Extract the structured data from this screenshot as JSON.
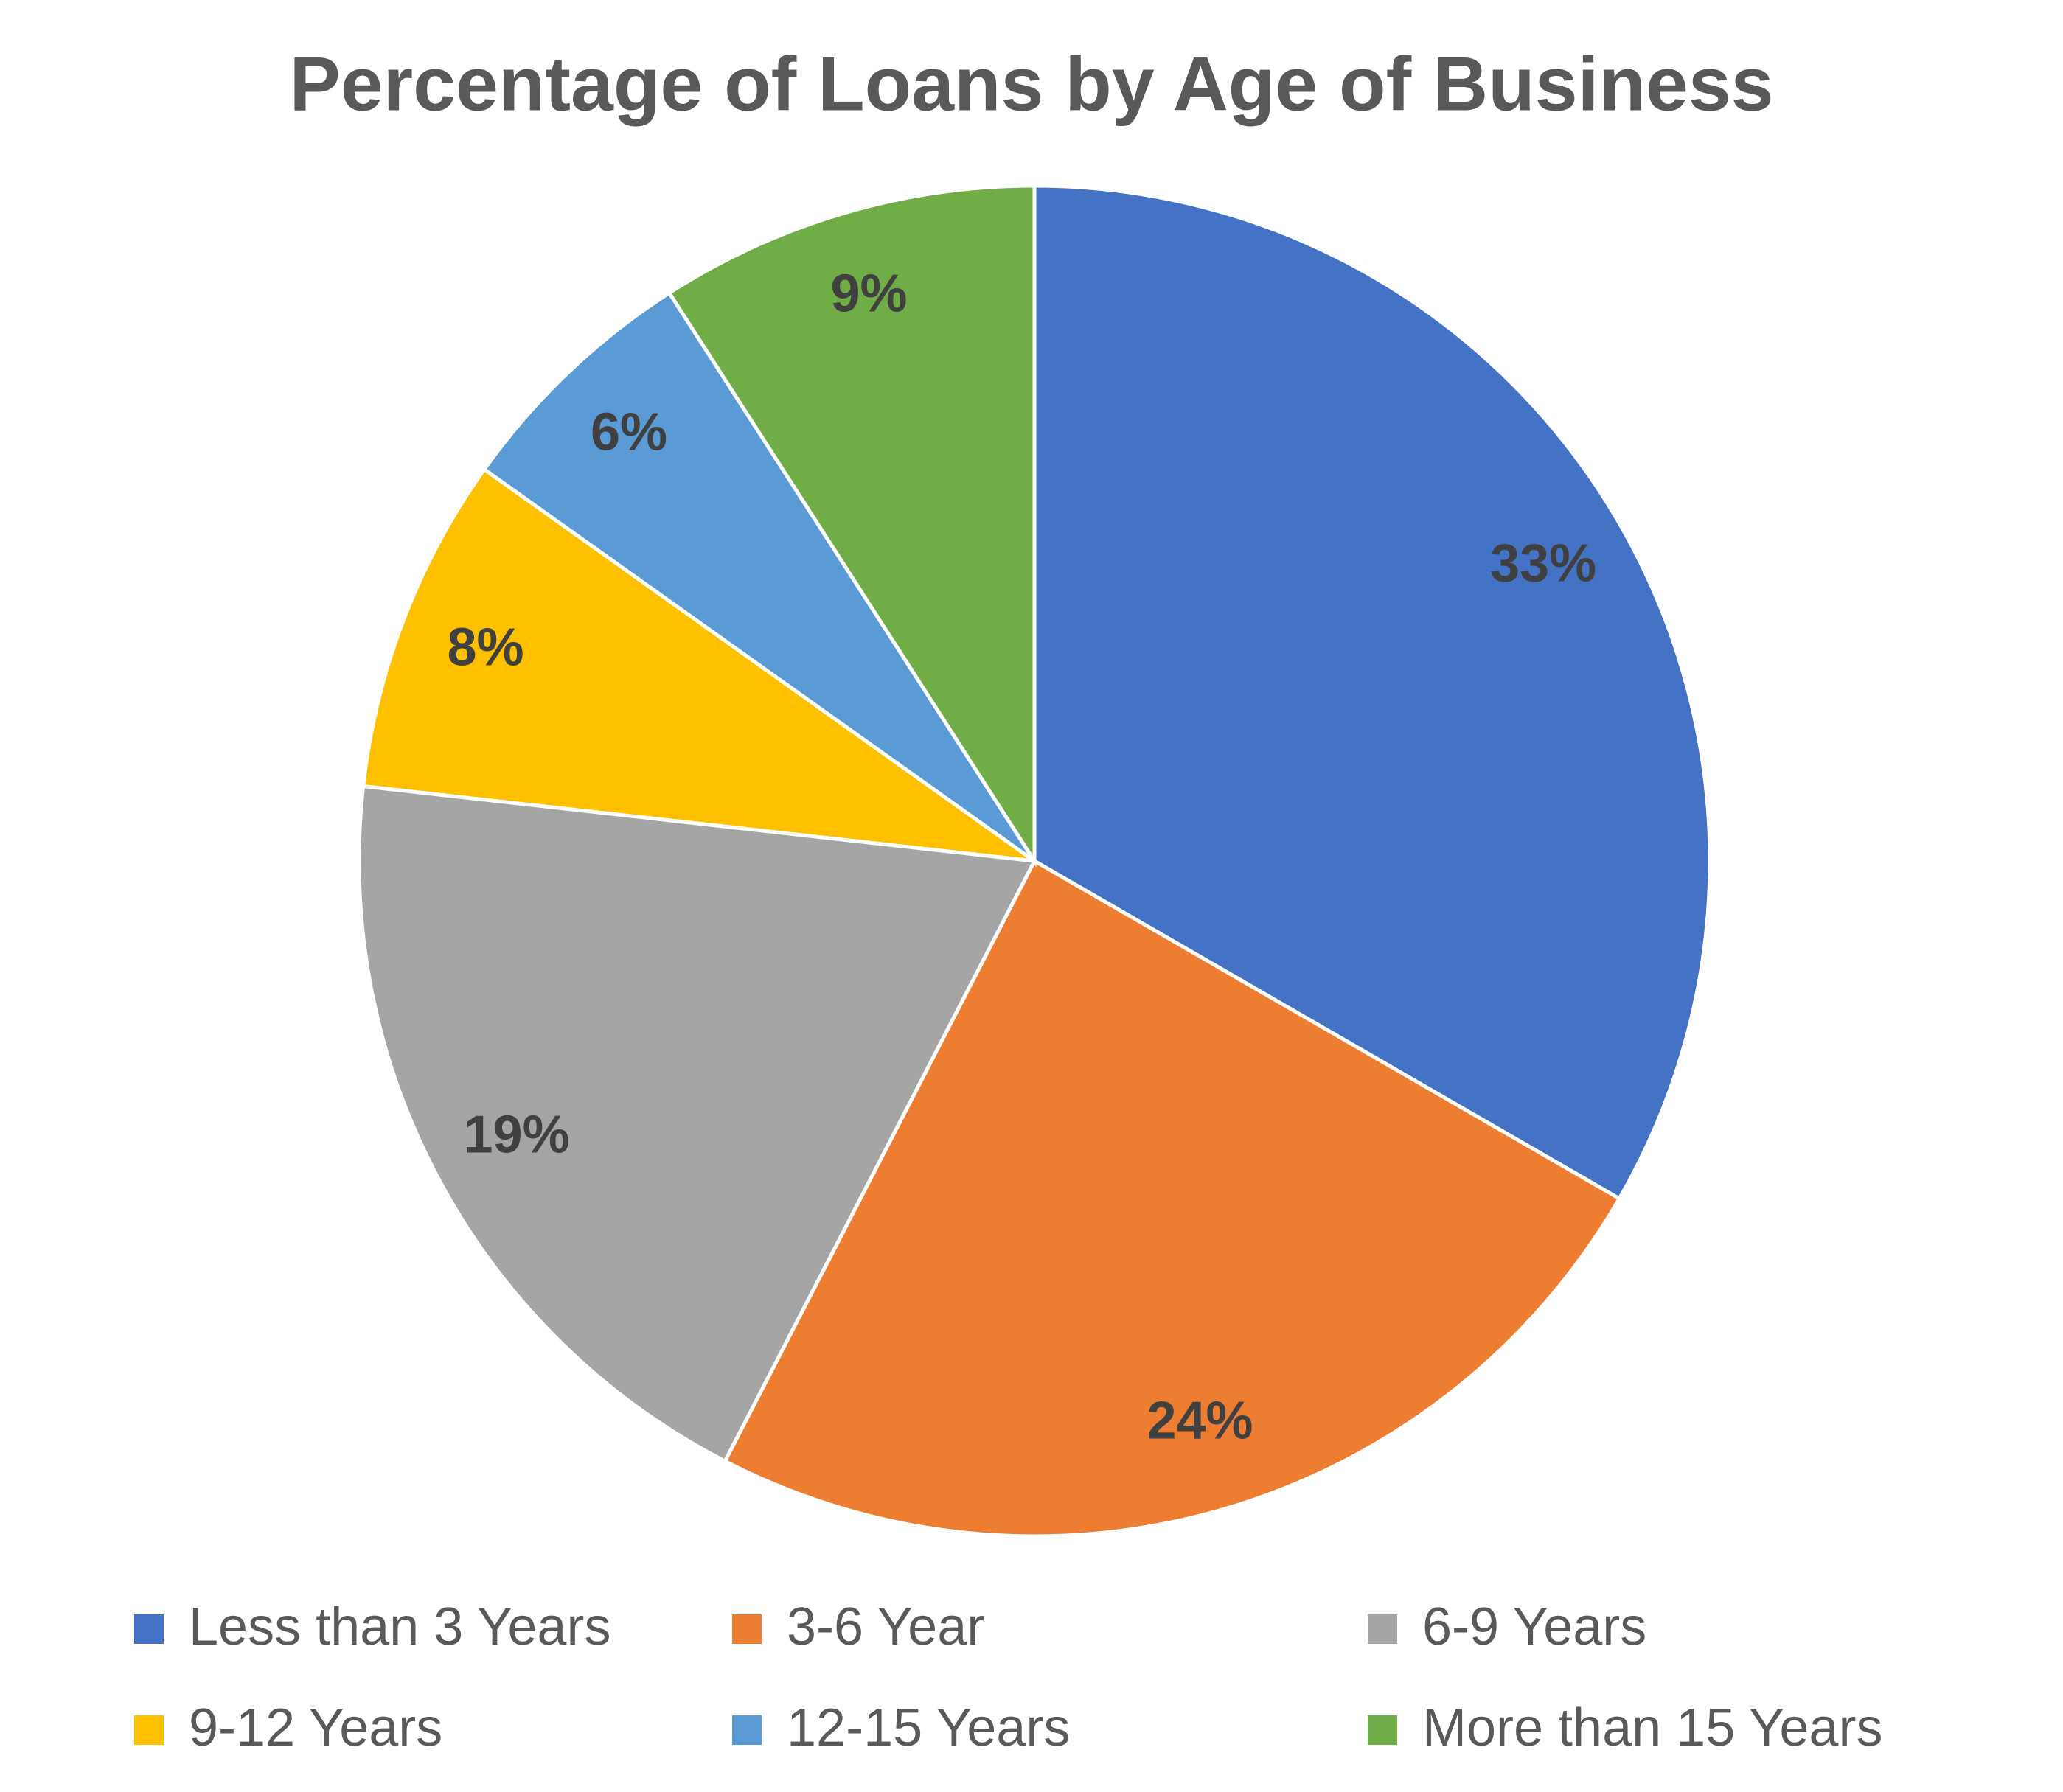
{
  "chart_data": {
    "type": "pie",
    "title": "Percentage of Loans by Age of Business",
    "categories": [
      "Less than 3 Years",
      "3-6 Year",
      "6-9 Years",
      "9-12 Years",
      "12-15 Years",
      "More than 15 Years"
    ],
    "values": [
      33,
      24,
      19,
      8,
      6,
      9
    ],
    "value_labels": [
      "33%",
      "24%",
      "19%",
      "8%",
      "6%",
      "9%"
    ],
    "colors": [
      "#4472c4",
      "#ed7d31",
      "#a5a5a5",
      "#ffc000",
      "#5b9bd5",
      "#70ad47"
    ],
    "legend": "bottom"
  }
}
